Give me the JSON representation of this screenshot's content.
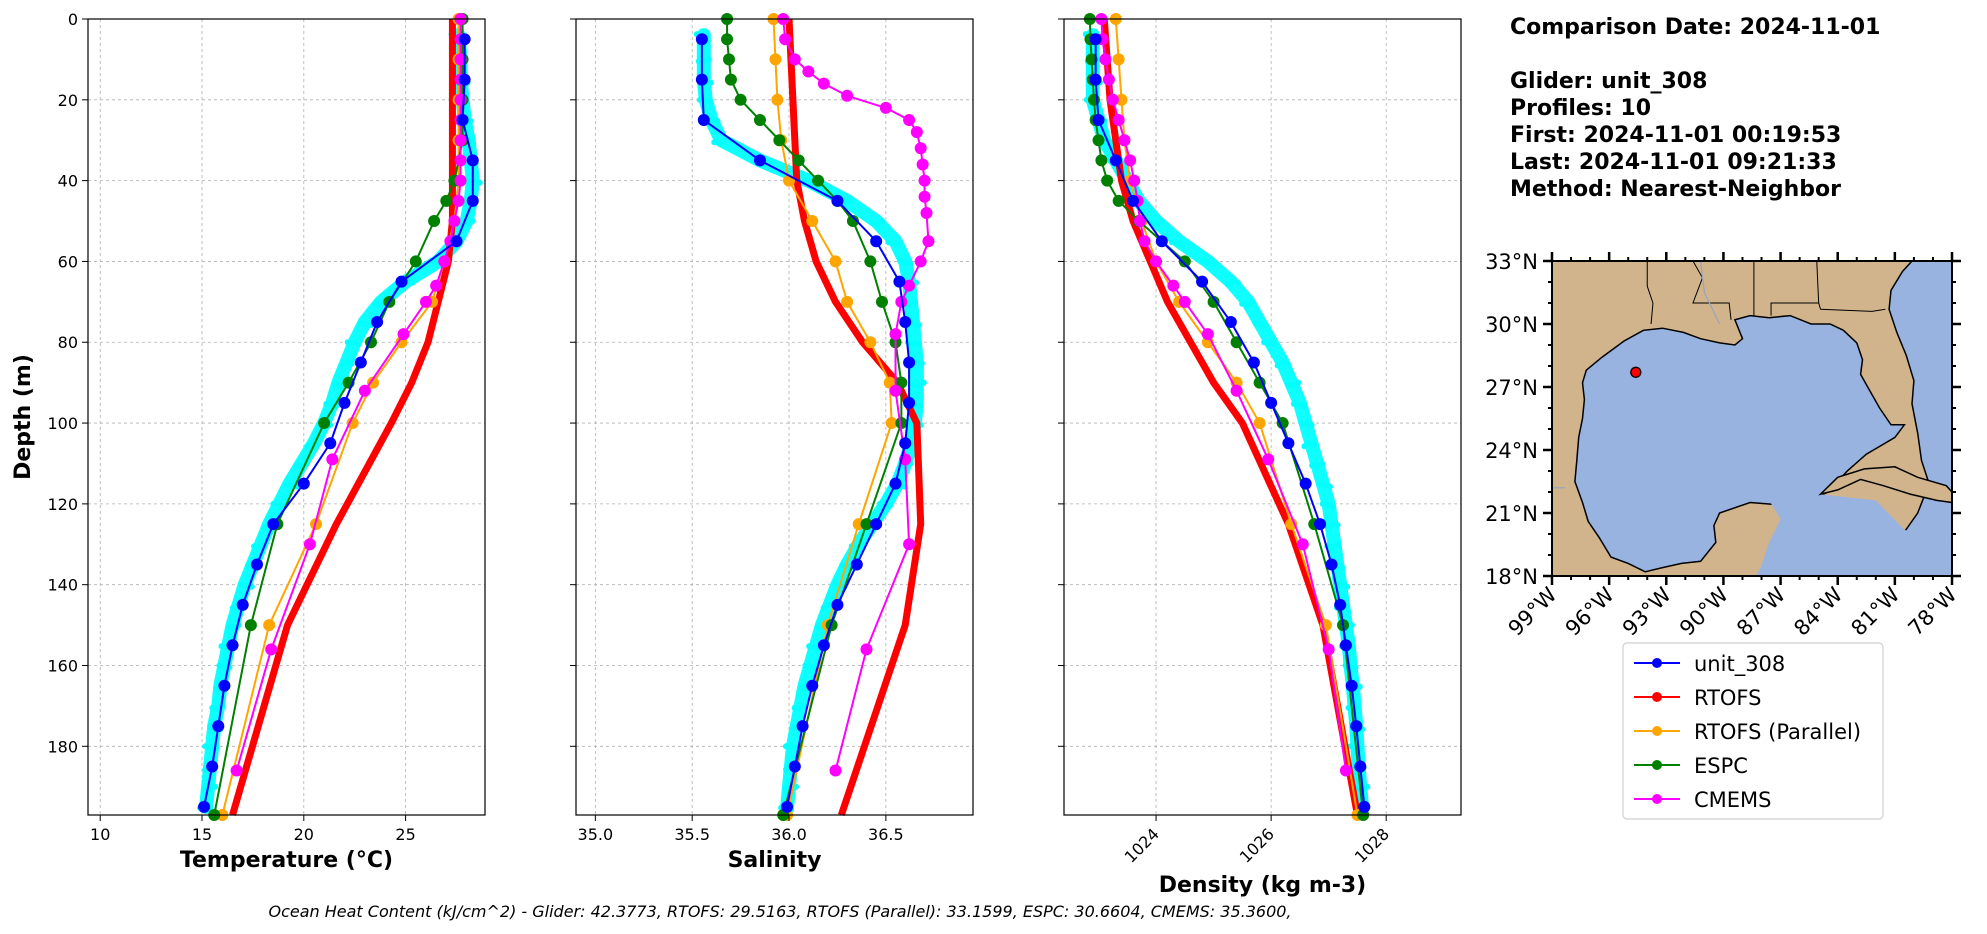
{
  "info": {
    "comparison_date": "Comparison Date: 2024-11-01",
    "glider": "Glider: unit_308",
    "profiles": "Profiles: 10",
    "first": "First: 2024-11-01 00:19:53",
    "last": "Last: 2024-11-01 09:21:33",
    "method": "Method: Nearest-Neighbor"
  },
  "footer": "Ocean Heat Content (kJ/cm^2) - Glider: 42.3773,  RTOFS: 29.5163,  RTOFS (Parallel): 33.1599,  ESPC: 30.6604,  CMEMS: 35.3600,",
  "colors": {
    "unit_308": "#0000ff",
    "RTOFS": "#ff0000",
    "RTOFS (Parallel)": "#ffa500",
    "ESPC": "#008000",
    "CMEMS": "#ff00ff",
    "glider_scatter": "#00ffff",
    "land": "#d2b48c",
    "ocean": "#99b3e0"
  },
  "chart_data": [
    {
      "type": "line",
      "xlabel": "Temperature (°C)",
      "ylabel": "Depth (m)",
      "xlim": [
        9.4,
        28.9
      ],
      "ylim": [
        197,
        0
      ],
      "xticks": [
        10,
        15,
        20,
        25
      ],
      "yticks": [
        0,
        20,
        40,
        60,
        80,
        100,
        120,
        140,
        160,
        180
      ],
      "grid": true,
      "glider_cloud": {
        "depths": [
          4,
          10,
          15,
          20,
          25,
          30,
          35,
          40,
          45,
          50,
          55,
          60,
          65,
          70,
          75,
          80,
          85,
          90,
          95,
          100,
          105,
          110,
          115,
          120,
          125,
          130,
          135,
          140,
          145,
          150,
          155,
          160,
          165,
          170,
          175,
          180,
          185,
          190,
          195
        ],
        "x": [
          27.6,
          27.7,
          27.7,
          27.8,
          27.9,
          28.1,
          28.2,
          28.3,
          28.2,
          28.0,
          27.5,
          26.6,
          25.0,
          23.8,
          23.0,
          22.5,
          22.1,
          21.7,
          21.4,
          21.0,
          20.5,
          19.9,
          19.3,
          18.8,
          18.3,
          17.9,
          17.5,
          17.1,
          16.8,
          16.5,
          16.3,
          16.1,
          15.9,
          15.8,
          15.6,
          15.5,
          15.4,
          15.3,
          15.2
        ]
      },
      "series": [
        {
          "name": "unit_308",
          "depth": [
            5,
            15,
            25,
            35,
            45,
            55,
            65,
            75,
            85,
            95,
            105,
            115,
            125,
            135,
            145,
            155,
            165,
            175,
            185,
            195
          ],
          "values": [
            27.9,
            27.9,
            27.8,
            28.3,
            28.3,
            27.5,
            24.8,
            23.6,
            22.8,
            22.0,
            21.3,
            20.0,
            18.5,
            17.7,
            17.0,
            16.5,
            16.1,
            15.8,
            15.5,
            15.1
          ]
        },
        {
          "name": "RTOFS",
          "depth": [
            0,
            10,
            20,
            30,
            40,
            50,
            60,
            70,
            80,
            90,
            100,
            125,
            150,
            197
          ],
          "values": [
            27.3,
            27.3,
            27.3,
            27.3,
            27.3,
            27.3,
            27.1,
            26.6,
            26.1,
            25.3,
            24.3,
            21.6,
            19.2,
            16.5
          ]
        },
        {
          "name": "RTOFS (Parallel)",
          "depth": [
            0,
            10,
            20,
            30,
            40,
            50,
            60,
            70,
            80,
            90,
            100,
            125,
            150,
            197
          ],
          "values": [
            27.6,
            27.6,
            27.6,
            27.6,
            27.6,
            27.4,
            26.9,
            26.3,
            24.8,
            23.4,
            22.4,
            20.6,
            18.3,
            16.0
          ]
        },
        {
          "name": "ESPC",
          "depth": [
            0,
            10,
            20,
            30,
            40,
            45,
            50,
            60,
            70,
            80,
            90,
            100,
            125,
            150,
            197
          ],
          "values": [
            27.8,
            27.8,
            27.8,
            27.8,
            27.4,
            27.0,
            26.4,
            25.5,
            24.2,
            23.3,
            22.2,
            21.0,
            18.7,
            17.4,
            15.6
          ]
        },
        {
          "name": "CMEMS",
          "depth": [
            0,
            5,
            10,
            15,
            20,
            25,
            30,
            35,
            40,
            45,
            50,
            55,
            60,
            66,
            70,
            78,
            92,
            109,
            130,
            156,
            186
          ],
          "values": [
            27.7,
            27.7,
            27.7,
            27.7,
            27.7,
            27.7,
            27.7,
            27.7,
            27.7,
            27.6,
            27.4,
            27.2,
            26.9,
            26.5,
            26.0,
            24.9,
            23.0,
            21.4,
            20.3,
            18.4,
            16.7
          ]
        }
      ]
    },
    {
      "type": "line",
      "xlabel": "Salinity",
      "xlim": [
        34.9,
        36.95
      ],
      "ylim": [
        197,
        0
      ],
      "xticks": [
        35.0,
        35.5,
        36.0,
        36.5
      ],
      "grid": true,
      "glider_cloud": {
        "depths": [
          4,
          10,
          15,
          20,
          25,
          30,
          35,
          40,
          45,
          50,
          55,
          60,
          65,
          70,
          75,
          80,
          85,
          90,
          95,
          100,
          105,
          110,
          115,
          120,
          125,
          130,
          135,
          140,
          145,
          150,
          155,
          160,
          165,
          170,
          175,
          180,
          185,
          190,
          195
        ],
        "x": [
          35.56,
          35.56,
          35.56,
          35.57,
          35.6,
          35.65,
          35.85,
          36.1,
          36.3,
          36.45,
          36.55,
          36.6,
          36.62,
          36.63,
          36.64,
          36.65,
          36.66,
          36.66,
          36.66,
          36.65,
          36.63,
          36.6,
          36.56,
          36.5,
          36.43,
          36.36,
          36.3,
          36.25,
          36.21,
          36.17,
          36.14,
          36.11,
          36.08,
          36.06,
          36.04,
          36.02,
          36.01,
          36.0,
          35.99
        ]
      },
      "series": [
        {
          "name": "unit_308",
          "depth": [
            5,
            15,
            25,
            35,
            45,
            55,
            65,
            75,
            85,
            95,
            105,
            115,
            125,
            135,
            145,
            155,
            165,
            175,
            185,
            195
          ],
          "values": [
            35.55,
            35.55,
            35.56,
            35.85,
            36.25,
            36.45,
            36.57,
            36.6,
            36.62,
            36.62,
            36.6,
            36.55,
            36.45,
            36.35,
            36.25,
            36.18,
            36.12,
            36.07,
            36.03,
            35.99
          ]
        },
        {
          "name": "RTOFS",
          "depth": [
            0,
            10,
            20,
            30,
            40,
            50,
            60,
            70,
            80,
            90,
            100,
            125,
            150,
            197
          ],
          "values": [
            36.0,
            36.01,
            36.02,
            36.03,
            36.04,
            36.08,
            36.14,
            36.24,
            36.38,
            36.56,
            36.66,
            36.68,
            36.6,
            36.27
          ]
        },
        {
          "name": "RTOFS (Parallel)",
          "depth": [
            0,
            10,
            20,
            30,
            40,
            50,
            60,
            70,
            80,
            90,
            100,
            125,
            150,
            197
          ],
          "values": [
            35.92,
            35.93,
            35.94,
            35.96,
            36.0,
            36.12,
            36.24,
            36.3,
            36.42,
            36.52,
            36.53,
            36.36,
            36.2,
            35.99
          ]
        },
        {
          "name": "ESPC",
          "depth": [
            0,
            5,
            10,
            15,
            20,
            25,
            30,
            35,
            40,
            45,
            50,
            60,
            70,
            80,
            90,
            100,
            125,
            150,
            197
          ],
          "values": [
            35.68,
            35.68,
            35.69,
            35.7,
            35.75,
            35.85,
            35.95,
            36.05,
            36.15,
            36.25,
            36.33,
            36.42,
            36.48,
            36.55,
            36.58,
            36.58,
            36.4,
            36.22,
            35.97
          ]
        },
        {
          "name": "CMEMS",
          "depth": [
            0,
            5,
            10,
            13,
            16,
            19,
            22,
            25,
            28,
            32,
            36,
            40,
            44,
            48,
            55,
            60,
            66,
            70,
            78,
            92,
            109,
            130,
            156,
            186
          ],
          "values": [
            35.97,
            35.98,
            36.03,
            36.1,
            36.18,
            36.3,
            36.5,
            36.62,
            36.66,
            36.68,
            36.69,
            36.7,
            36.7,
            36.71,
            36.72,
            36.68,
            36.62,
            36.58,
            36.55,
            36.55,
            36.6,
            36.62,
            36.4,
            36.24
          ]
        }
      ]
    },
    {
      "type": "line",
      "xlabel": "Density (kg m-3)",
      "xlim": [
        1022.4,
        1029.3
      ],
      "ylim": [
        197,
        0
      ],
      "xticks": [
        1024,
        1026,
        1028
      ],
      "grid": true,
      "glider_cloud": {
        "depths": [
          4,
          10,
          15,
          20,
          25,
          30,
          35,
          40,
          45,
          50,
          55,
          60,
          65,
          70,
          75,
          80,
          85,
          90,
          95,
          100,
          105,
          110,
          115,
          120,
          125,
          130,
          135,
          140,
          145,
          150,
          155,
          160,
          165,
          170,
          175,
          180,
          185,
          190,
          195
        ],
        "x": [
          1022.9,
          1022.9,
          1022.9,
          1022.9,
          1023.0,
          1023.1,
          1023.3,
          1023.5,
          1023.7,
          1024.0,
          1024.4,
          1024.9,
          1025.3,
          1025.6,
          1025.8,
          1026.0,
          1026.2,
          1026.35,
          1026.5,
          1026.6,
          1026.7,
          1026.8,
          1026.9,
          1027.0,
          1027.05,
          1027.1,
          1027.15,
          1027.2,
          1027.25,
          1027.3,
          1027.35,
          1027.38,
          1027.42,
          1027.45,
          1027.48,
          1027.5,
          1027.52,
          1027.55,
          1027.58
        ]
      },
      "series": [
        {
          "name": "unit_308",
          "depth": [
            5,
            15,
            25,
            35,
            45,
            55,
            65,
            75,
            85,
            95,
            105,
            115,
            125,
            135,
            145,
            155,
            165,
            175,
            185,
            195
          ],
          "values": [
            1022.95,
            1022.95,
            1023.0,
            1023.3,
            1023.6,
            1024.1,
            1024.8,
            1025.3,
            1025.7,
            1026.0,
            1026.3,
            1026.6,
            1026.85,
            1027.05,
            1027.2,
            1027.3,
            1027.4,
            1027.48,
            1027.55,
            1027.62
          ]
        },
        {
          "name": "RTOFS",
          "depth": [
            0,
            10,
            20,
            30,
            40,
            50,
            60,
            70,
            80,
            90,
            100,
            125,
            150,
            197
          ],
          "values": [
            1023.1,
            1023.15,
            1023.2,
            1023.3,
            1023.4,
            1023.6,
            1023.9,
            1024.2,
            1024.6,
            1025.0,
            1025.5,
            1026.3,
            1026.9,
            1027.5
          ]
        },
        {
          "name": "RTOFS (Parallel)",
          "depth": [
            0,
            10,
            20,
            30,
            40,
            50,
            60,
            70,
            80,
            90,
            100,
            125,
            150,
            197
          ],
          "values": [
            1023.3,
            1023.35,
            1023.4,
            1023.45,
            1023.55,
            1023.75,
            1024.0,
            1024.4,
            1024.9,
            1025.4,
            1025.8,
            1026.35,
            1026.95,
            1027.5
          ]
        },
        {
          "name": "ESPC",
          "depth": [
            0,
            5,
            10,
            15,
            20,
            25,
            30,
            35,
            40,
            45,
            50,
            60,
            70,
            80,
            90,
            100,
            125,
            150,
            197
          ],
          "values": [
            1022.85,
            1022.86,
            1022.88,
            1022.9,
            1022.92,
            1022.95,
            1023.0,
            1023.05,
            1023.15,
            1023.35,
            1023.7,
            1024.5,
            1025.0,
            1025.4,
            1025.8,
            1026.2,
            1026.75,
            1027.25,
            1027.6
          ]
        },
        {
          "name": "CMEMS",
          "depth": [
            0,
            5,
            10,
            15,
            20,
            25,
            30,
            35,
            40,
            45,
            50,
            55,
            60,
            66,
            70,
            78,
            92,
            109,
            130,
            156,
            186
          ],
          "values": [
            1023.05,
            1023.07,
            1023.12,
            1023.18,
            1023.25,
            1023.35,
            1023.45,
            1023.55,
            1023.62,
            1023.68,
            1023.72,
            1023.8,
            1024.0,
            1024.3,
            1024.5,
            1024.9,
            1025.4,
            1025.95,
            1026.55,
            1027.0,
            1027.3
          ]
        }
      ]
    }
  ],
  "map": {
    "lat_ticks": [
      "33°N",
      "30°N",
      "27°N",
      "24°N",
      "21°N",
      "18°N"
    ],
    "lon_ticks": [
      "99°W",
      "96°W",
      "93°W",
      "90°W",
      "87°W",
      "84°W",
      "81°W",
      "78°W"
    ],
    "lon_range": [
      -99,
      -78
    ],
    "lat_range": [
      18,
      33
    ],
    "glider_position": {
      "lon": -94.6,
      "lat": 27.7
    }
  },
  "legend": [
    "unit_308",
    "RTOFS",
    "RTOFS (Parallel)",
    "ESPC",
    "CMEMS"
  ]
}
